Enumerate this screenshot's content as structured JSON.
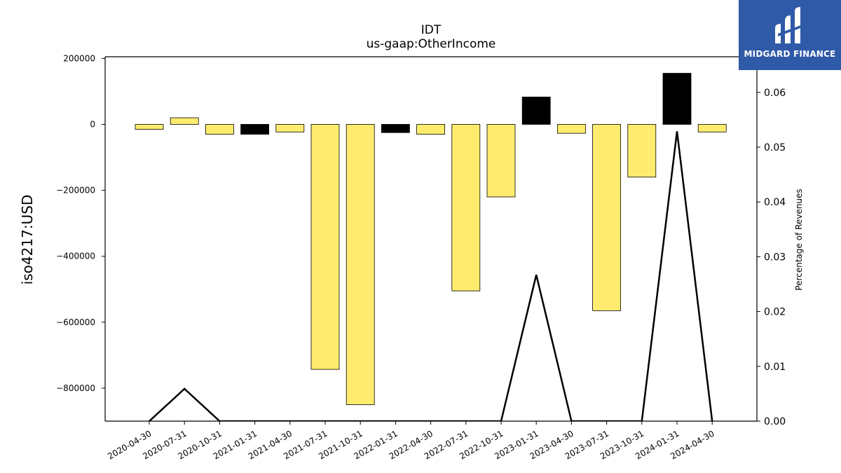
{
  "chart_data": {
    "type": "bar",
    "title": "IDT",
    "subtitle": "us-gaap:OtherIncome",
    "ylabel": "iso4217:USD",
    "y2label": "Percentage of Revenues",
    "categories": [
      "2020-04-30",
      "2020-07-31",
      "2020-10-31",
      "2021-01-31",
      "2021-04-30",
      "2021-07-31",
      "2021-10-31",
      "2022-01-31",
      "2022-04-30",
      "2022-07-31",
      "2022-10-31",
      "2023-01-31",
      "2023-04-30",
      "2023-07-31",
      "2023-10-31",
      "2024-01-31",
      "2024-04-30"
    ],
    "series": [
      {
        "type": "bar",
        "values": [
          -15000,
          20000,
          -30000,
          -30000,
          -23000,
          -743000,
          -850000,
          -25000,
          -30000,
          -505000,
          -220000,
          83000,
          -27000,
          -565000,
          -160000,
          155000,
          -23000
        ],
        "colors": [
          "#ffec6e",
          "#ffec6e",
          "#ffec6e",
          "#000000",
          "#ffec6e",
          "#ffec6e",
          "#ffec6e",
          "#000000",
          "#ffec6e",
          "#ffec6e",
          "#ffec6e",
          "#000000",
          "#ffec6e",
          "#ffec6e",
          "#ffec6e",
          "#000000",
          "#ffec6e"
        ]
      },
      {
        "type": "line",
        "axis": "right",
        "color": "#000000",
        "values": [
          0,
          0.0059,
          0,
          0,
          0,
          0,
          0,
          0,
          0,
          0,
          0,
          0.0267,
          0,
          0,
          0,
          0.0529,
          0
        ]
      }
    ],
    "ylim": [
      -900000,
      205000
    ],
    "y_ticks": [
      200000,
      0,
      -200000,
      -400000,
      -600000,
      -800000
    ],
    "y_tick_labels": [
      "200000",
      "0",
      "−200000",
      "−400000",
      "−600000",
      "−800000"
    ],
    "y2lim": [
      0,
      0.0665
    ],
    "y2_ticks": [
      0,
      0.01,
      0.02,
      0.03,
      0.04,
      0.05,
      0.06
    ],
    "y2_tick_labels": [
      "0.00",
      "0.01",
      "0.02",
      "0.03",
      "0.04",
      "0.05",
      "0.06"
    ],
    "grid": false,
    "legend": "none"
  },
  "logo": {
    "text": "MIDGARD FINANCE"
  }
}
